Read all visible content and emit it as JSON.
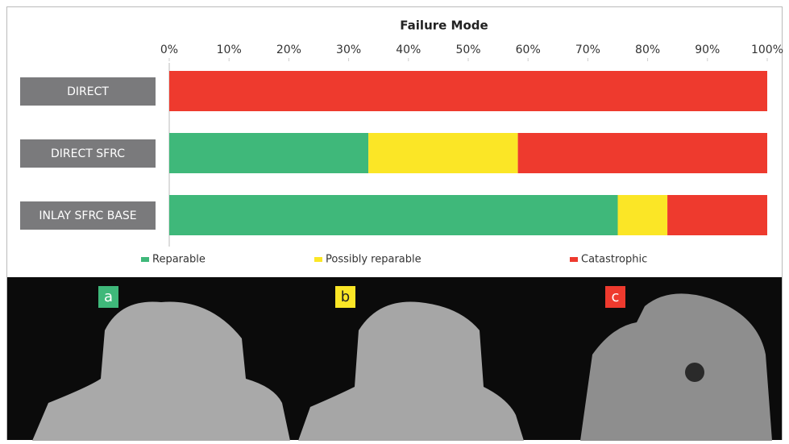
{
  "chart_data": {
    "type": "stacked-bar-horizontal",
    "title": "Failure Mode",
    "categories": [
      "DIRECT",
      "DIRECT SFRC",
      "INLAY SFRC BASE"
    ],
    "series": [
      {
        "name": "Reparable",
        "color": "#3fb87a",
        "values": [
          0,
          33.3,
          75
        ]
      },
      {
        "name": "Possibly reparable",
        "color": "#fbe626",
        "values": [
          0,
          25,
          8.3
        ]
      },
      {
        "name": "Catastrophic",
        "color": "#ee3a2e",
        "values": [
          100,
          41.7,
          16.7
        ]
      }
    ],
    "xlim": [
      0,
      100
    ],
    "xticks": [
      {
        "value": 0,
        "label": "0%"
      },
      {
        "value": 10,
        "label": "10%"
      },
      {
        "value": 20,
        "label": "20%"
      },
      {
        "value": 30,
        "label": "30%"
      },
      {
        "value": 40,
        "label": "40%"
      },
      {
        "value": 50,
        "label": "50%"
      },
      {
        "value": 60,
        "label": "60%"
      },
      {
        "value": 70,
        "label": "70%"
      },
      {
        "value": 80,
        "label": "80%"
      },
      {
        "value": 90,
        "label": "90%"
      },
      {
        "value": 100,
        "label": "100%"
      }
    ],
    "legend": "bottom"
  },
  "photos": [
    {
      "label": "a"
    },
    {
      "label": "b"
    },
    {
      "label": "c"
    }
  ]
}
